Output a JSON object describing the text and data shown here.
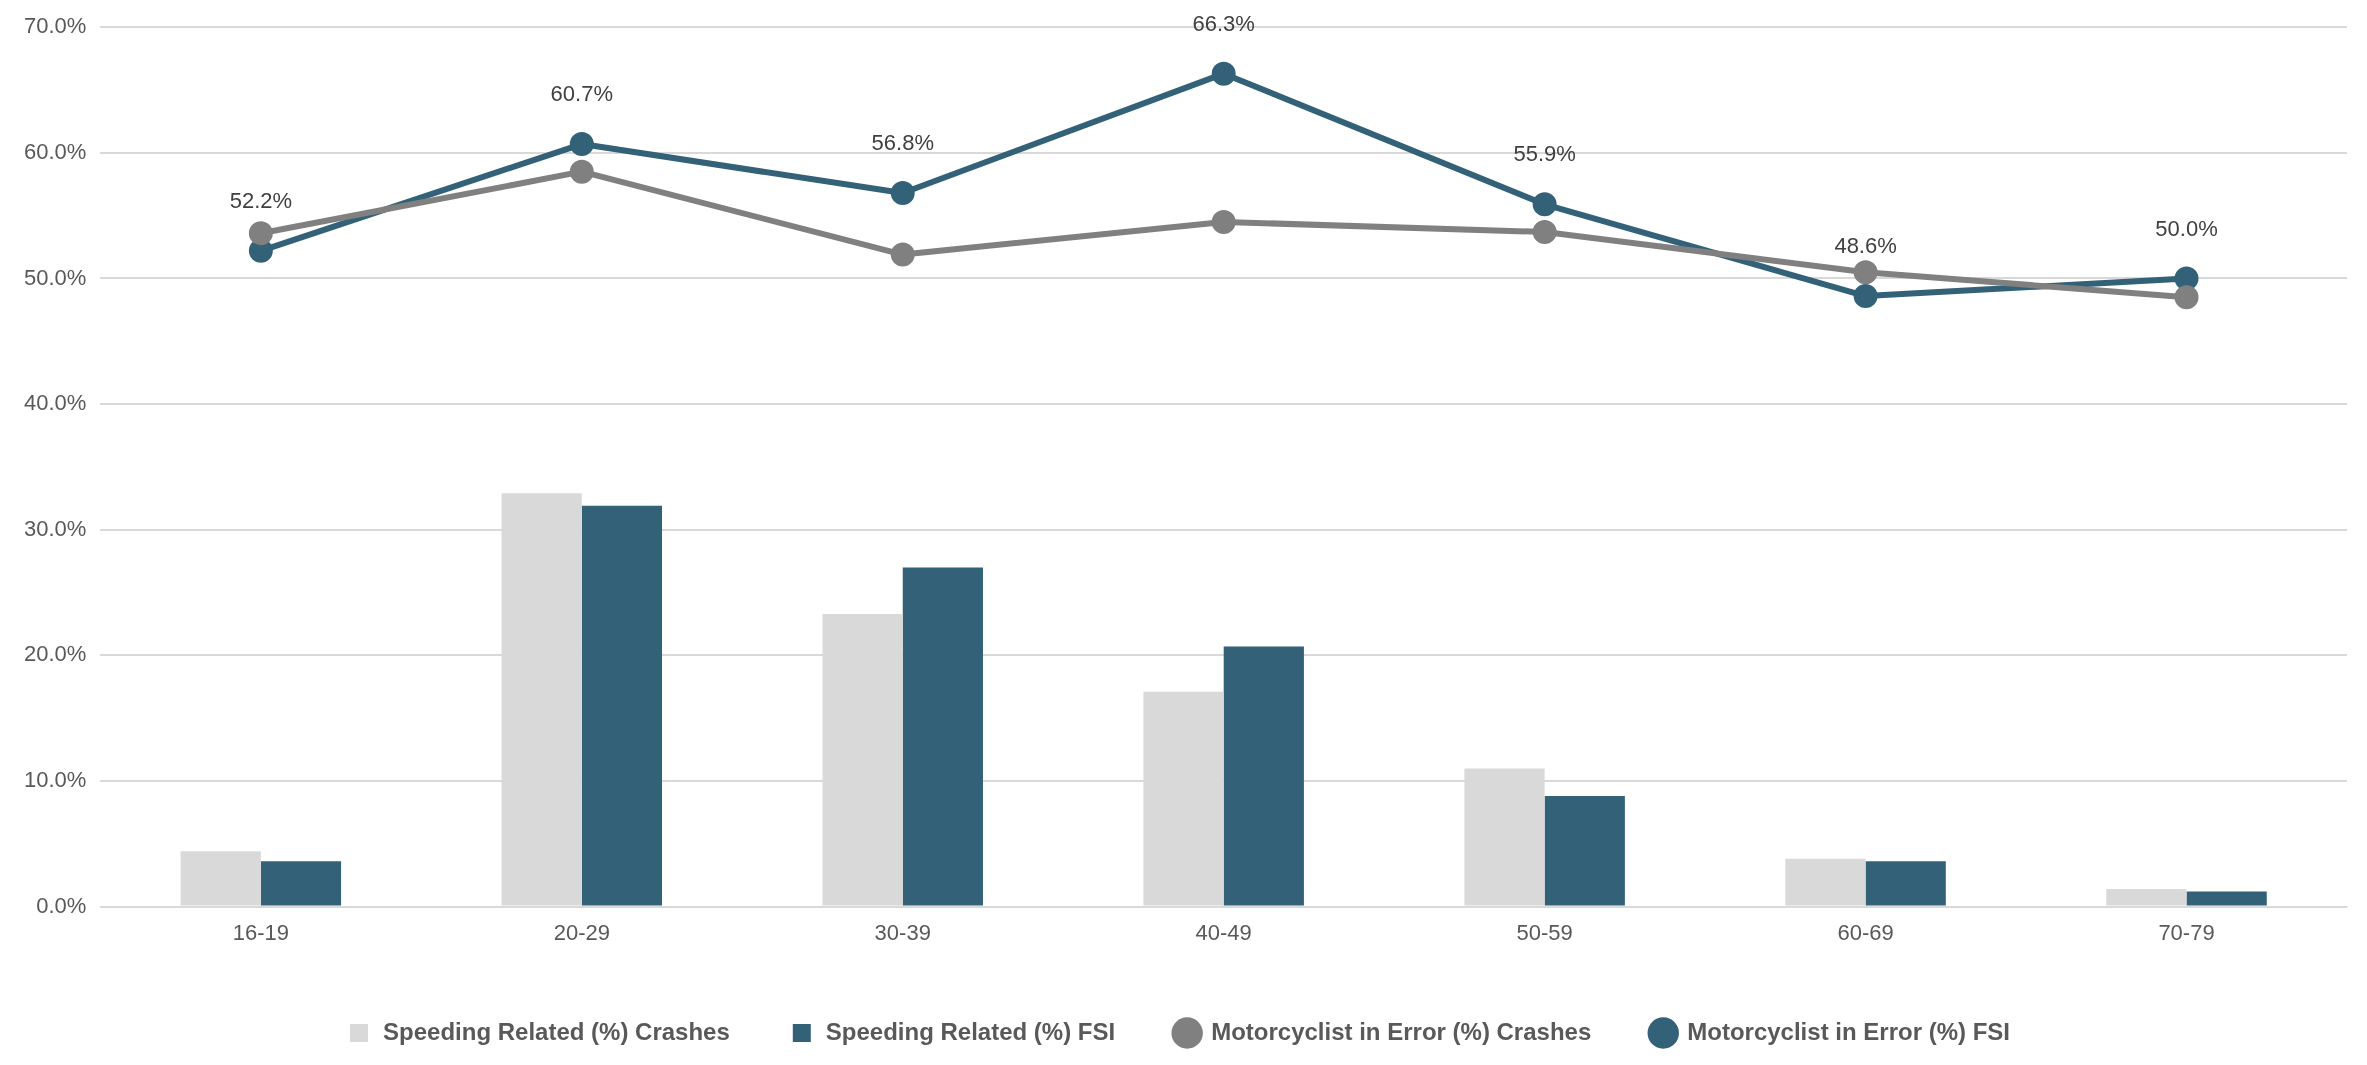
{
  "chart_data": {
    "type": "bar",
    "categories": [
      "16-19",
      "20-29",
      "30-39",
      "40-49",
      "50-59",
      "60-69",
      "70-79"
    ],
    "series": [
      {
        "name": "Speeding Related (%) Crashes",
        "color": "#d9d9d9",
        "values": [
          4.4,
          32.9,
          23.3,
          17.1,
          11.0,
          3.8,
          1.4
        ]
      },
      {
        "name": "Speeding Related (%) FSI",
        "color": "#336178",
        "values": [
          3.6,
          31.9,
          27.0,
          20.7,
          8.8,
          3.6,
          1.2
        ]
      },
      {
        "name": "Motorcyclist in Error (%) Crashes",
        "type": "line",
        "color": "#808080",
        "values": [
          53.6,
          58.5,
          51.9,
          54.5,
          53.7,
          50.5,
          48.5
        ]
      },
      {
        "name": "Motorcyclist in Error (%) FSI",
        "type": "line",
        "color": "#336178",
        "values": [
          52.2,
          60.7,
          56.8,
          66.3,
          55.9,
          48.6,
          50.0
        ],
        "value_labels": [
          "52.2%",
          "60.7%",
          "56.8%",
          "66.3%",
          "55.9%",
          "48.6%",
          "50.0%"
        ]
      }
    ],
    "ylim": [
      0,
      70
    ],
    "yticks": [
      {
        "value": 0,
        "label": "0.0%"
      },
      {
        "value": 10,
        "label": "10.0%"
      },
      {
        "value": 20,
        "label": "20.0%"
      },
      {
        "value": 30,
        "label": "30.0%"
      },
      {
        "value": 40,
        "label": "40.0%"
      },
      {
        "value": 50,
        "label": "50.0%"
      },
      {
        "value": 60,
        "label": "60.0%"
      },
      {
        "value": 70,
        "label": "70.0%"
      }
    ],
    "grid": "y",
    "legend": "bottom",
    "marker": "circle",
    "line_style": "solid"
  }
}
